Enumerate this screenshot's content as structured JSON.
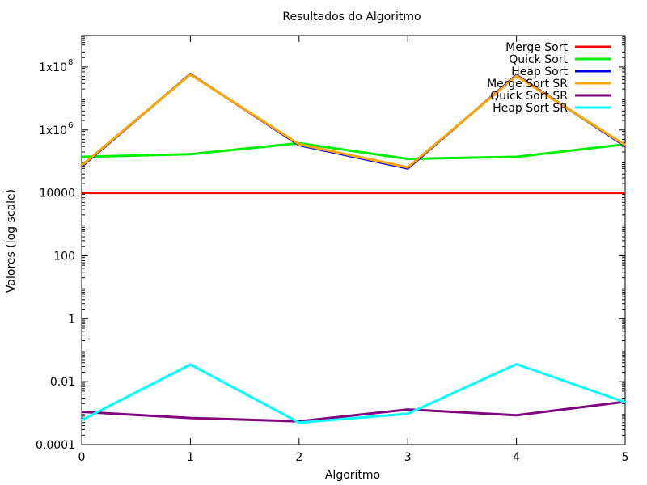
{
  "chart_data": {
    "type": "line",
    "title": "Resultados do Algoritmo",
    "xlabel": "Algoritmo",
    "ylabel": "Valores (log scale)",
    "yscale": "log",
    "xlim": [
      0,
      5
    ],
    "ylim": [
      0.0001,
      1000000000.0
    ],
    "x": [
      0,
      1,
      2,
      3,
      4,
      5
    ],
    "x_ticks": [
      "0",
      "1",
      "2",
      "3",
      "4",
      "5"
    ],
    "y_ticks": [
      {
        "value": 0.0001,
        "label": "0.0001"
      },
      {
        "value": 0.01,
        "label": "0.01"
      },
      {
        "value": 1,
        "label": "1"
      },
      {
        "value": 100,
        "label": "100"
      },
      {
        "value": 10000,
        "label": "10000"
      },
      {
        "value": 1000000,
        "label": "1x10",
        "sup": "6"
      },
      {
        "value": 100000000,
        "label": "1x10",
        "sup": "8"
      }
    ],
    "grid": false,
    "legend_position": "top-right",
    "series": [
      {
        "name": "Merge Sort",
        "color": "#ff0000",
        "values": [
          10000,
          10000,
          10000,
          10000,
          10000,
          10000
        ]
      },
      {
        "name": "Quick Sort",
        "color": "#00ee00",
        "values": [
          140000,
          170000,
          380000,
          120000,
          140000,
          350000
        ]
      },
      {
        "name": "Heap Sort",
        "color": "#0000dd",
        "values": [
          70000,
          60000000,
          330000,
          60000,
          55000000,
          310000
        ]
      },
      {
        "name": "Merge Sort SR",
        "color": "#ffa500",
        "values": [
          75000,
          58000000,
          350000,
          65000,
          52000000,
          330000
        ]
      },
      {
        "name": "Quick Sort SR",
        "color": "#800080",
        "values": [
          0.0011,
          0.0007,
          0.00055,
          0.0013,
          0.00085,
          0.0023
        ]
      },
      {
        "name": "Heap Sort SR",
        "color": "#00ffff",
        "values": [
          0.0006,
          0.035,
          0.0005,
          0.00095,
          0.036,
          0.0022
        ]
      }
    ]
  }
}
